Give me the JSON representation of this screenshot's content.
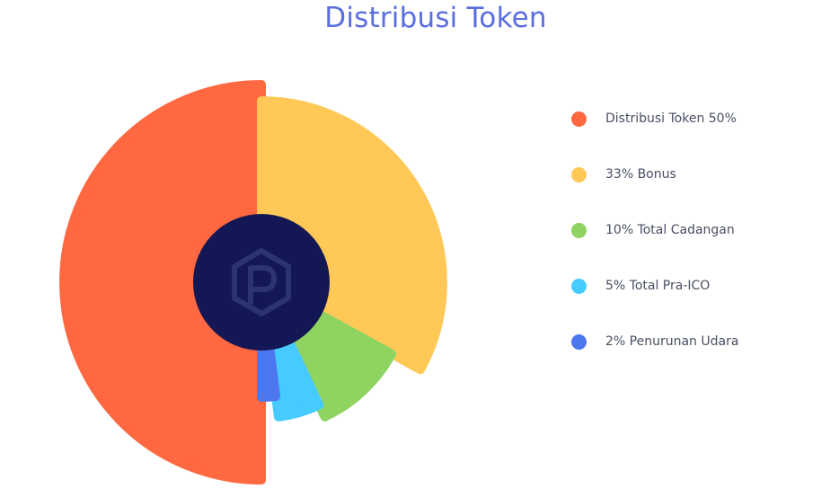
{
  "chart_data": {
    "type": "pie",
    "title": "Distribusi Token",
    "series": [
      {
        "name": "Distribusi Token 50%",
        "value": 50,
        "color": "#ff6841"
      },
      {
        "name": "33% Bonus",
        "value": 33,
        "color": "#ffc857"
      },
      {
        "name": "10% Total Cadangan",
        "value": 10,
        "color": "#8fd460"
      },
      {
        "name": "5% Total Pra-ICO",
        "value": 5,
        "color": "#45cbff"
      },
      {
        "name": "2% Penurunan Udara",
        "value": 2,
        "color": "#4c77ee"
      }
    ],
    "legend": "right",
    "center_color": "#131754"
  },
  "center_logo": {
    "icon": "hexagon-p-logo-icon",
    "color": "#2c3372"
  }
}
